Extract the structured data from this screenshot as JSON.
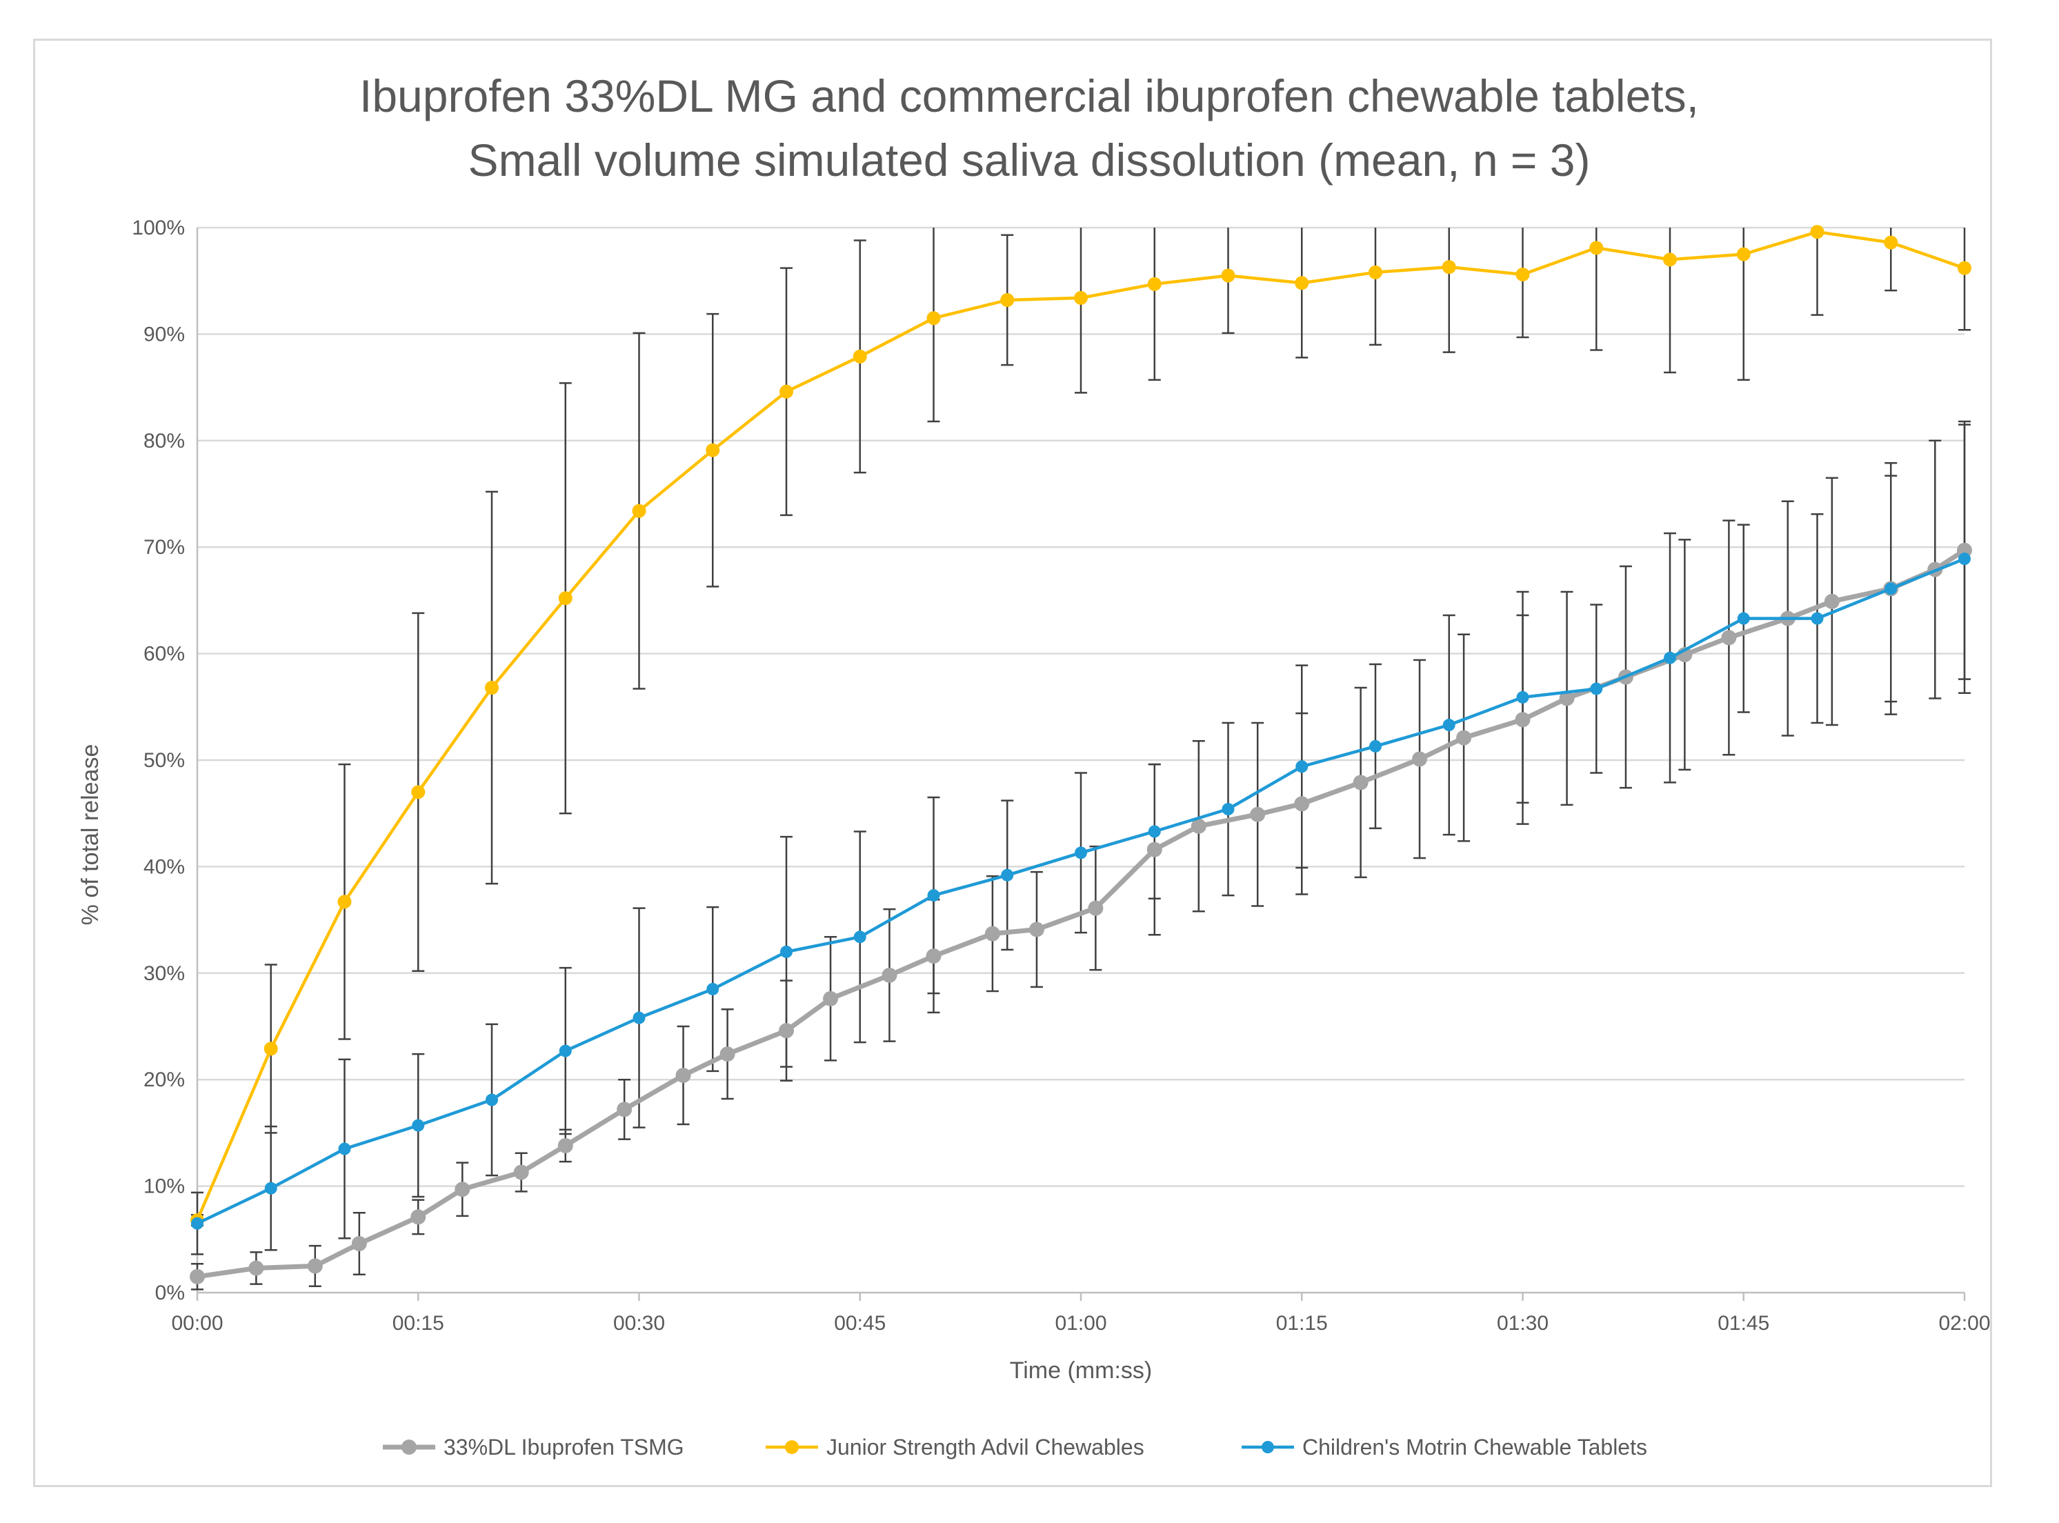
{
  "chart_data": {
    "type": "line",
    "title": [
      "Ibuprofen 33%DL MG and commercial ibuprofen chewable tablets,",
      "Small volume simulated saliva dissolution (mean, n = 3)"
    ],
    "xlabel": "Time (mm:ss)",
    "ylabel": "% of total release",
    "xlim": [
      0,
      120
    ],
    "ylim": [
      0,
      100
    ],
    "x_ticks": [
      0,
      15,
      30,
      45,
      60,
      75,
      90,
      105,
      120
    ],
    "x_tick_labels": [
      "00:00",
      "00:15",
      "00:30",
      "00:45",
      "01:00",
      "01:15",
      "01:30",
      "01:45",
      "02:00"
    ],
    "y_ticks": [
      0,
      10,
      20,
      30,
      40,
      50,
      60,
      70,
      80,
      90,
      100
    ],
    "y_tick_labels": [
      "0%",
      "10%",
      "20%",
      "30%",
      "40%",
      "50%",
      "60%",
      "70%",
      "80%",
      "90%",
      "100%"
    ],
    "grid": true,
    "legend_position": "bottom",
    "series": [
      {
        "name": "33%DL Ibuprofen TSMG",
        "color": "#a5a5a5",
        "x": [
          0,
          4,
          8,
          11,
          15,
          18,
          22,
          25,
          29,
          33,
          36,
          40,
          43,
          47,
          50,
          54,
          57,
          61,
          65,
          68,
          72,
          75,
          79,
          83,
          86,
          90,
          93,
          97,
          101,
          104,
          108,
          111,
          115,
          118,
          120
        ],
        "y": [
          1.5,
          2.3,
          2.5,
          4.6,
          7.1,
          9.7,
          11.3,
          13.8,
          17.2,
          20.4,
          22.4,
          24.6,
          27.6,
          29.8,
          31.6,
          33.7,
          34.1,
          36.1,
          41.6,
          43.8,
          44.9,
          45.9,
          47.9,
          50.1,
          52.1,
          53.8,
          55.8,
          57.8,
          59.9,
          61.5,
          63.3,
          64.9,
          66.1,
          67.9,
          69.7
        ],
        "err": [
          1.2,
          1.5,
          1.9,
          2.9,
          1.6,
          2.5,
          1.8,
          1.5,
          2.8,
          4.6,
          4.2,
          4.7,
          5.8,
          6.2,
          5.3,
          5.4,
          5.4,
          5.8,
          8.0,
          8.0,
          8.6,
          8.5,
          8.9,
          9.3,
          9.7,
          9.8,
          10.0,
          10.4,
          10.8,
          11.0,
          11.0,
          11.6,
          11.8,
          12.1,
          12.1
        ]
      },
      {
        "name": "Junior Strength Advil Chewables",
        "color": "#ffc000",
        "x": [
          0,
          5,
          10,
          15,
          20,
          25,
          30,
          35,
          40,
          45,
          50,
          55,
          60,
          65,
          70,
          75,
          80,
          85,
          90,
          95,
          100,
          105,
          110,
          115,
          120
        ],
        "y": [
          6.8,
          22.9,
          36.7,
          47.0,
          56.8,
          65.2,
          73.4,
          79.1,
          84.6,
          87.9,
          91.5,
          93.2,
          93.4,
          94.7,
          95.5,
          94.8,
          95.8,
          96.3,
          95.6,
          98.1,
          97.0,
          97.5,
          99.6,
          98.6,
          96.2
        ],
        "err": [
          0.5,
          7.9,
          12.9,
          16.8,
          18.4,
          20.2,
          16.7,
          12.8,
          11.6,
          10.9,
          9.7,
          6.1,
          8.9,
          9.0,
          5.4,
          7.0,
          6.8,
          8.0,
          5.9,
          9.6,
          10.6,
          11.8,
          7.8,
          4.5,
          5.8
        ]
      },
      {
        "name": "Children's Motrin Chewable Tablets",
        "color": "#1f9ad6",
        "x": [
          0,
          5,
          10,
          15,
          20,
          25,
          30,
          35,
          40,
          45,
          50,
          55,
          60,
          65,
          70,
          75,
          80,
          85,
          90,
          95,
          100,
          105,
          110,
          115,
          120
        ],
        "y": [
          6.5,
          9.8,
          13.5,
          15.7,
          18.1,
          22.7,
          25.8,
          28.5,
          32.0,
          33.4,
          37.3,
          39.2,
          41.3,
          43.3,
          45.4,
          49.4,
          51.3,
          53.3,
          55.9,
          56.7,
          59.6,
          63.3,
          63.3,
          66.1,
          68.9
        ],
        "err": [
          2.9,
          5.8,
          8.4,
          6.7,
          7.1,
          7.8,
          10.3,
          7.7,
          10.8,
          9.9,
          9.2,
          7.0,
          7.5,
          6.3,
          8.1,
          9.5,
          7.7,
          10.3,
          9.9,
          7.9,
          11.7,
          8.8,
          9.8,
          10.6,
          12.6
        ]
      }
    ]
  }
}
